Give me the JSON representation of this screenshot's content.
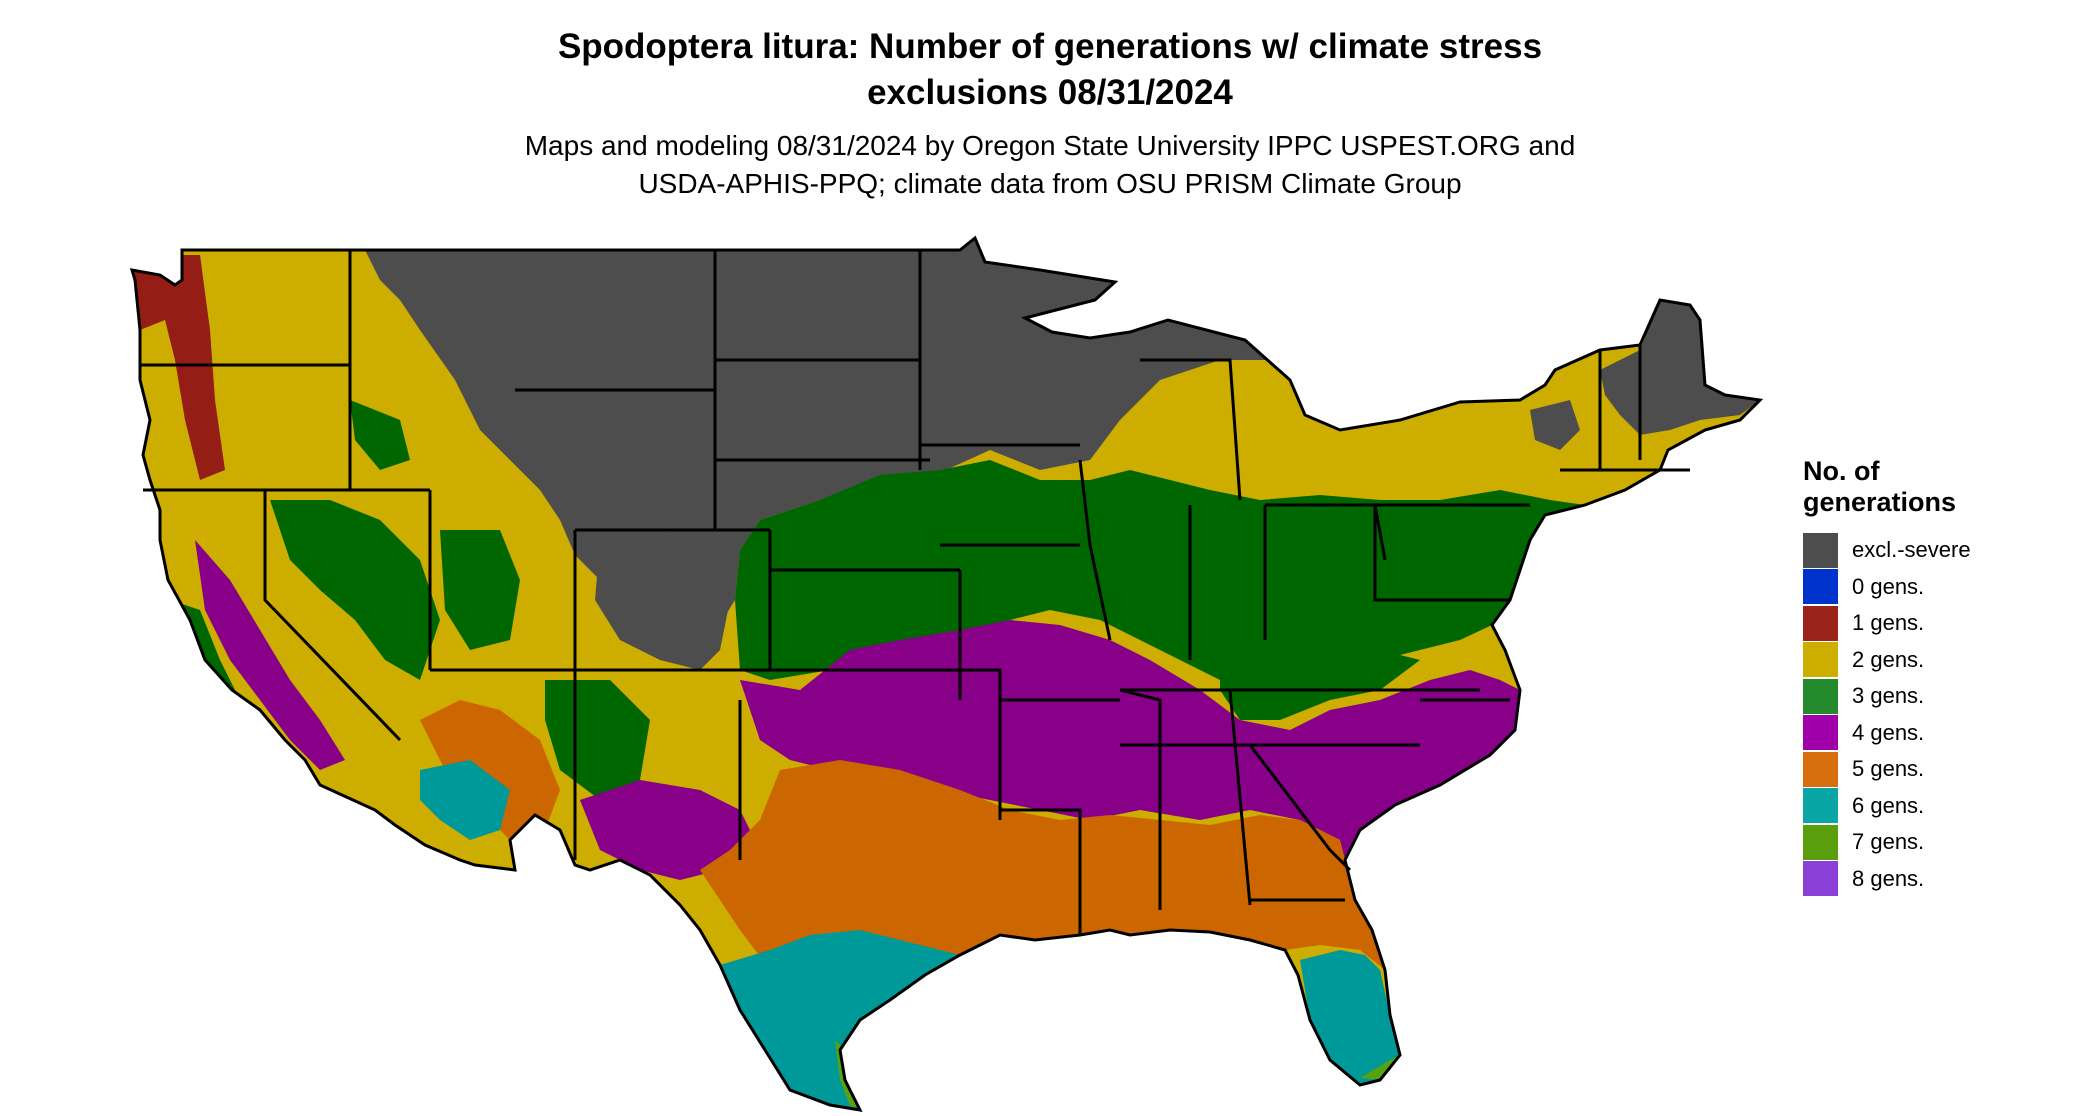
{
  "title": {
    "line1": "Spodoptera litura: Number of generations w/ climate stress",
    "line2": "exclusions 08/31/2024"
  },
  "subtitle": {
    "line1": "Maps and modeling 08/31/2024 by Oregon State University IPPC USPEST.ORG and",
    "line2": "USDA-APHIS-PPQ; climate data from OSU PRISM Climate Group"
  },
  "legend": {
    "title_line1": "No. of",
    "title_line2": "generations",
    "items": [
      {
        "label": "excl.-severe",
        "color": "#4d4d4d"
      },
      {
        "label": "0 gens.",
        "color": "#0033cc"
      },
      {
        "label": "1 gens.",
        "color": "#99251a"
      },
      {
        "label": "2 gens.",
        "color": "#ccad00"
      },
      {
        "label": "3 gens.",
        "color": "#238a2e"
      },
      {
        "label": "4 gens.",
        "color": "#a000a8"
      },
      {
        "label": "5 gens.",
        "color": "#d66f0d"
      },
      {
        "label": "6 gens.",
        "color": "#0aa6a6"
      },
      {
        "label": "7 gens.",
        "color": "#5a9e0e"
      },
      {
        "label": "8 gens.",
        "color": "#8a40d6"
      }
    ]
  },
  "map_colors": {
    "excluded": "#4d4d4d",
    "gen1": "#941d16",
    "gen2": "#ccad00",
    "gen3": "#006600",
    "gen3_light": "#26a02e",
    "gen4": "#880088",
    "gen4_light": "#cc00cc",
    "gen5": "#cc6600",
    "gen5_light": "#e0822a",
    "gen6": "#009999",
    "gen7": "#55a30e",
    "border": "#000000"
  }
}
